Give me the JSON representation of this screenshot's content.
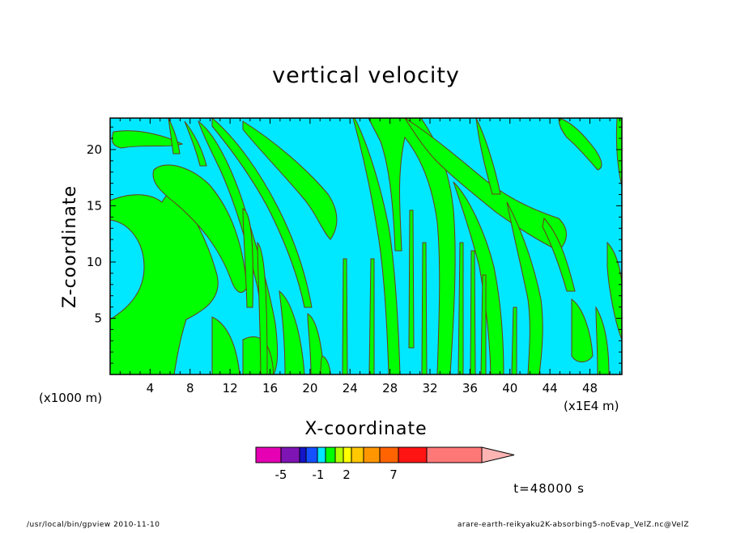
{
  "chart_data": {
    "type": "heatmap",
    "title": "vertical velocity",
    "xlabel": "X-coordinate",
    "ylabel": "Z-coordinate",
    "x_unit": "(x1E4 m)",
    "y_unit": "(x1000 m)",
    "xlim": [
      0,
      51.2
    ],
    "ylim": [
      0,
      22.8
    ],
    "x_ticks": [
      4,
      8,
      12,
      16,
      20,
      24,
      28,
      32,
      36,
      40,
      44,
      48
    ],
    "y_ticks": [
      5,
      10,
      15,
      20
    ],
    "x_tick_labels": [
      "4",
      "8",
      "12",
      "16",
      "20",
      "24",
      "28",
      "32",
      "36",
      "40",
      "44",
      "48"
    ],
    "y_tick_labels": [
      "5",
      "10",
      "15",
      "20"
    ],
    "field_colors": {
      "negative": "#00e8ff",
      "positive": "#00ff00",
      "contour": "#6b3a1a"
    },
    "colorbar": {
      "colors": [
        "#e600b4",
        "#7e14b4",
        "#1414c8",
        "#1450ff",
        "#00e6ff",
        "#00ff00",
        "#b4ff00",
        "#ffff00",
        "#ffc800",
        "#ff9600",
        "#ff6400",
        "#ff1414",
        "#ff7878",
        "#ffb4b4"
      ],
      "labels": [
        "-5",
        "-1",
        "2",
        "7"
      ],
      "label_values": [
        -5,
        -1,
        2,
        7
      ]
    },
    "time_label": "t=48000 s",
    "grid": false,
    "legend": "colorbar-bottom"
  },
  "footer": {
    "left": "/usr/local/bin/gpview  2010-11-10",
    "right": "arare-earth-reikyaku2K-absorbing5-noEvap_VelZ.nc@VelZ"
  }
}
